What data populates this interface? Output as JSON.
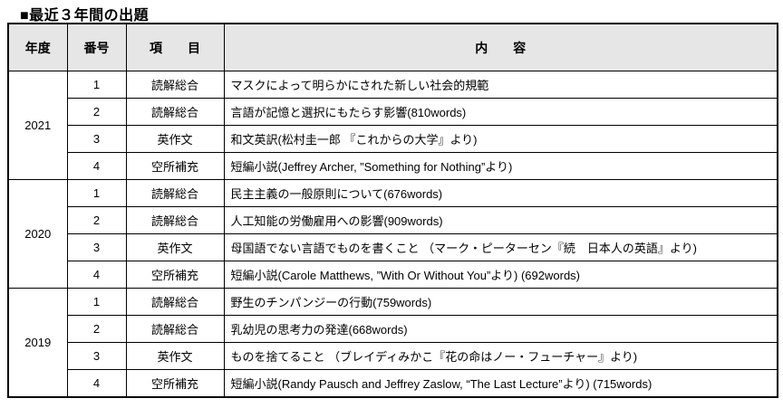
{
  "title": "■最近３年間の出題",
  "table": {
    "headers": {
      "year": "年度",
      "number": "番号",
      "item": "項　　目",
      "content": "内　　容"
    },
    "groups": [
      {
        "year": "2021",
        "rows": [
          {
            "number": "1",
            "item": "読解総合",
            "content": "マスクによって明らかにされた新しい社会的規範"
          },
          {
            "number": "2",
            "item": "読解総合",
            "content": "言語が記憶と選択にもたらす影響(810words)"
          },
          {
            "number": "3",
            "item": "英作文",
            "content": "和文英訳(松村圭一郎 『これからの大学』より)"
          },
          {
            "number": "4",
            "item": "空所補充",
            "content": "短編小説(Jeffrey Archer, ”Something for Nothing”より)"
          }
        ]
      },
      {
        "year": "2020",
        "rows": [
          {
            "number": "1",
            "item": "読解総合",
            "content": "民主主義の一般原則について(676words)"
          },
          {
            "number": "2",
            "item": "読解総合",
            "content": "人工知能の労働雇用への影響(909words)"
          },
          {
            "number": "3",
            "item": "英作文",
            "content": "母国語でない言語でものを書くこと （マーク・ピーターセン『続　日本人の英語』より)"
          },
          {
            "number": "4",
            "item": "空所補充",
            "content": "短編小説(Carole Matthews, ”With Or Without You”より) (692words)"
          }
        ]
      },
      {
        "year": "2019",
        "rows": [
          {
            "number": "1",
            "item": "読解総合",
            "content": "野生のチンパンジーの行動(759words)"
          },
          {
            "number": "2",
            "item": "読解総合",
            "content": "乳幼児の思考力の発達(668words)"
          },
          {
            "number": "3",
            "item": "英作文",
            "content": "ものを捨てること （ブレイディみかこ『花の命はノー・フューチャー』より)"
          },
          {
            "number": "4",
            "item": "空所補充",
            "content": "短編小説(Randy Pausch and Jeffrey Zaslow, “The Last Lecture”より) (715words)"
          }
        ]
      }
    ]
  },
  "colors": {
    "header_bg": "#e6e6e6",
    "border": "#000000",
    "background": "#ffffff"
  }
}
